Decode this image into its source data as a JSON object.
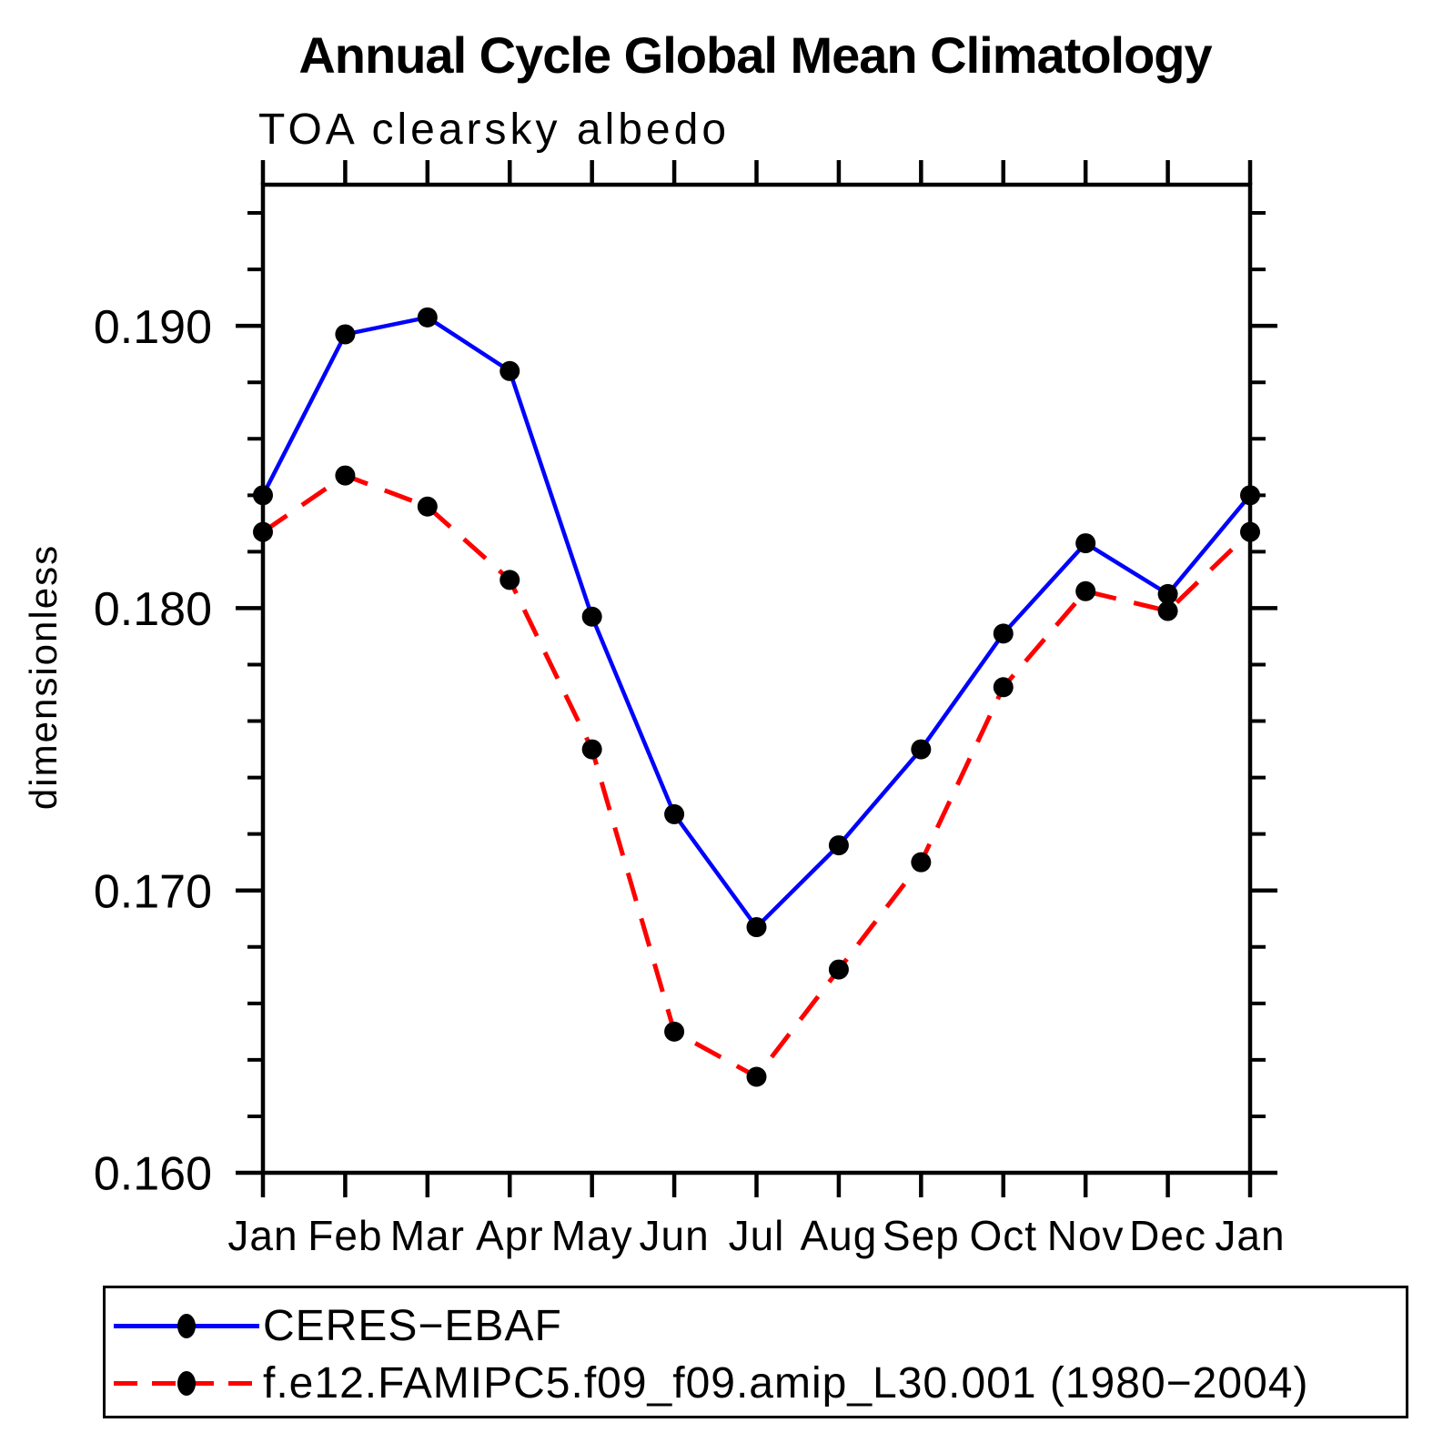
{
  "chart_data": {
    "type": "line",
    "title": "Annual Cycle Global Mean Climatology",
    "subtitle": "TOA clearsky albedo",
    "ylabel": "dimensionless",
    "xlabel": "",
    "categories": [
      "Jan",
      "Feb",
      "Mar",
      "Apr",
      "May",
      "Jun",
      "Jul",
      "Aug",
      "Sep",
      "Oct",
      "Nov",
      "Dec",
      "Jan"
    ],
    "series": [
      {
        "name": "CERES−EBAF",
        "color": "#0000ff",
        "line_style": "solid",
        "marker": "filled-circle",
        "marker_color": "#000000",
        "values": [
          0.184,
          0.1897,
          0.1903,
          0.1884,
          0.1797,
          0.1727,
          0.1687,
          0.1716,
          0.175,
          0.1791,
          0.1823,
          0.1805,
          0.184
        ]
      },
      {
        "name": "f.e12.FAMIPC5.f09_f09.amip_L30.001 (1980−2004)",
        "color": "#ff0000",
        "line_style": "dashed",
        "marker": "filled-circle",
        "marker_color": "#000000",
        "values": [
          0.1827,
          0.1847,
          0.1836,
          0.181,
          0.175,
          0.165,
          0.1634,
          0.1672,
          0.171,
          0.1772,
          0.1806,
          0.1799,
          0.1827
        ]
      }
    ],
    "yaxis": {
      "min": 0.16,
      "max": 0.195,
      "major_ticks": [
        0.16,
        0.17,
        0.18,
        0.19
      ],
      "major_tick_labels": [
        "0.160",
        "0.170",
        "0.180",
        "0.190"
      ],
      "minor_tick_step": 0.002
    },
    "xaxis": {
      "tick_labels": [
        "Jan",
        "Feb",
        "Mar",
        "Apr",
        "May",
        "Jun",
        "Jul",
        "Aug",
        "Sep",
        "Oct",
        "Nov",
        "Dec",
        "Jan"
      ]
    },
    "grid": "off",
    "legend_position": "bottom-box",
    "axis_color": "#000000",
    "background_color": "#ffffff"
  }
}
